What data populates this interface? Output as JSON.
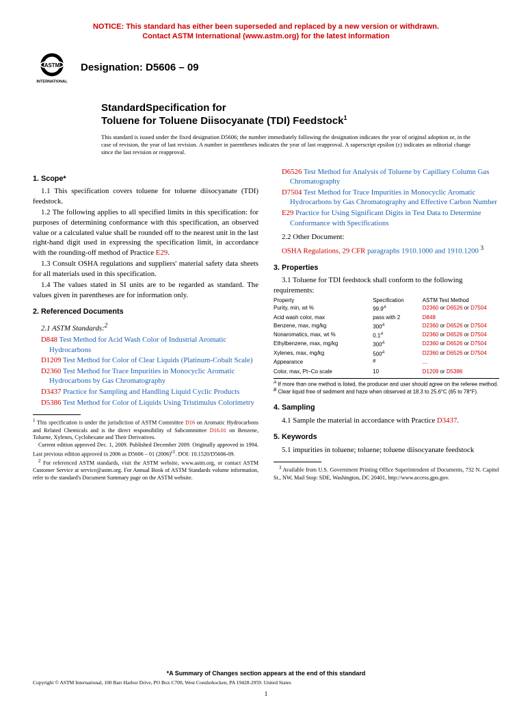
{
  "notice": {
    "l1": "NOTICE: This standard has either been superseded and replaced by a new version or withdrawn.",
    "l2": "Contact ASTM International (www.astm.org) for the latest information"
  },
  "logo": {
    "top": "ASTM",
    "bot": "INTERNATIONAL"
  },
  "designation": "Designation: D5606 – 09",
  "title": {
    "prefix": "StandardSpecification for",
    "main": "Toluene for Toluene Diisocyanate (TDI) Feedstock",
    "sup": "1"
  },
  "issued": "This standard is issued under the fixed designation D5606; the number immediately following the designation indicates the year of original adoption or, in the case of revision, the year of last revision. A number in parentheses indicates the year of last reapproval. A superscript epsilon (ε) indicates an editorial change since the last revision or reapproval.",
  "s1": {
    "h": "1. Scope*",
    "p11": "1.1 This specification covers toluene for toluene diisocyanate (TDI) feedstock.",
    "p12a": "1.2 The following applies to all specified limits in this specification: for purposes of determining conformance with this specification, an observed value or a calculated value shall be rounded off to the nearest unit in the last right-hand digit used in expressing the specification limit, in accordance with the rounding-off method of Practice ",
    "p12r": "E29",
    "p12b": ".",
    "p13": "1.3 Consult OSHA regulations and suppliers' material safety data sheets for all materials used in this specification.",
    "p14": "1.4 The values stated in SI units are to be regarded as standard. The values given in parentheses are for information only."
  },
  "s2": {
    "h": "2. Referenced Documents",
    "sub": "2.1 ASTM Standards:",
    "sup": "2",
    "refs": [
      {
        "c": "D848",
        "t": "Test Method for Acid Wash Color of Industrial Aromatic Hydrocarbons"
      },
      {
        "c": "D1209",
        "t": "Test Method for Color of Clear Liquids (Platinum-Cobalt Scale)"
      },
      {
        "c": "D2360",
        "t": "Test Method for Trace Impurities in Monocyclic Aromatic Hydrocarbons by Gas Chromatography"
      },
      {
        "c": "D3437",
        "t": "Practice for Sampling and Handling Liquid Cyclic Products"
      },
      {
        "c": "D5386",
        "t": "Test Method for Color of Liquids Using Tristimulus Colorimetry"
      },
      {
        "c": "D6526",
        "t": "Test Method for Analysis of Toluene by Capillary Column Gas Chromatography"
      },
      {
        "c": "D7504",
        "t": "Test Method for Trace Impurities in Monocyclic Aromatic Hydrocarbons by Gas Chromatography and Effective Carbon Number"
      },
      {
        "c": "E29",
        "t": "Practice for Using Significant Digits in Test Data to Determine Conformance with Specifications"
      }
    ],
    "other": "2.2 Other Document:",
    "osha": {
      "c": "OSHA Regulations, 29 CFR",
      "t": "paragraphs 1910.1000 and 1910.1200",
      "sup": "3"
    }
  },
  "s3": {
    "h": "3. Properties",
    "p31": "3.1 Toluene for TDI feedstock shall conform to the following requirements:",
    "th": {
      "a": "Property",
      "b": "Specification",
      "c": "ASTM Test Method"
    },
    "rows": [
      {
        "a": "Purity, min, wt %",
        "b": "99.9",
        "s": "A",
        "c": [
          "D2360",
          "D6526",
          "D7504"
        ]
      },
      {
        "a": "Acid wash color, max",
        "b": "pass with 2",
        "s": "",
        "c": [
          "D848"
        ]
      },
      {
        "a": "Benzene, max, mg/kg",
        "b": "300",
        "s": "A",
        "c": [
          "D2360",
          "D6526",
          "D7504"
        ]
      },
      {
        "a": "Nonaromatics, max, wt %",
        "b": "0.1",
        "s": "A",
        "c": [
          "D2360",
          "D6526",
          "D7504"
        ]
      },
      {
        "a": "Ethylbenzene, max, mg/kg",
        "b": "300",
        "s": "A",
        "c": [
          "D2360",
          "D6526",
          "D7504"
        ]
      },
      {
        "a": "Xylenes, max, mg/kg",
        "b": "500",
        "s": "A",
        "c": [
          "D2360",
          "D6526",
          "D7504"
        ]
      },
      {
        "a": "Appearance",
        "b": "",
        "s": "B",
        "c": [
          "..."
        ]
      },
      {
        "a": "Color, max, Pt–Co scale",
        "b": "10",
        "s": "",
        "c": [
          "D1209",
          "D5386"
        ]
      }
    ],
    "fnA": " If more than one method is listed, the producer and user should agree on the referee method.",
    "fnB": " Clear liquid free of sediment and haze when observed at 18.3 to 25.6°C (65 to 78°F)."
  },
  "s4": {
    "h": "4. Sampling",
    "p41a": "4.1 Sample the material in accordance with Practice ",
    "p41r": "D3437",
    "p41b": "."
  },
  "s5": {
    "h": "5. Keywords",
    "p51": "5.1 impurities in toluene; toluene; toluene diisocyanate feedstock"
  },
  "fn1": {
    "sup": "1",
    "a": "This specification is under the jurisdiction of ASTM Committee ",
    "r1": "D16",
    "b": " on Aromatic Hydrocarbons and Related Chemicals and is the direct responsibility of Subcommittee ",
    "r2": "D16.01",
    "c": " on Benzene, Toluene, Xylenes, Cyclohexane and Their Derivatives.",
    "d": "Current edition approved Dec. 1, 2009. Published December 2009. Originally approved in 1994. Last previous edition approved in 2006 as D5606 – 01 (2006)",
    "e": ". DOI: 10.1520/D5606-09."
  },
  "fn2": {
    "sup": "2",
    "t": "For referenced ASTM standards, visit the ASTM website, www.astm.org, or contact ASTM Customer Service at service@astm.org. For Annual Book of ASTM Standards volume information, refer to the standard's Document Summary page on the ASTM website."
  },
  "fn3": {
    "sup": "3",
    "t": "Available from U.S. Government Printing Office Superintendent of Documents, 732 N. Capitol St., NW, Mail Stop: SDE, Washington, DC 20401, http://www.access.gpo.gov."
  },
  "bottom": {
    "summary": "*A Summary of Changes section appears at the end of this standard",
    "cp": "Copyright © ASTM International, 100 Barr Harbor Drive, PO Box C700, West Conshohocken, PA 19428-2959. United States",
    "pg": "1"
  }
}
